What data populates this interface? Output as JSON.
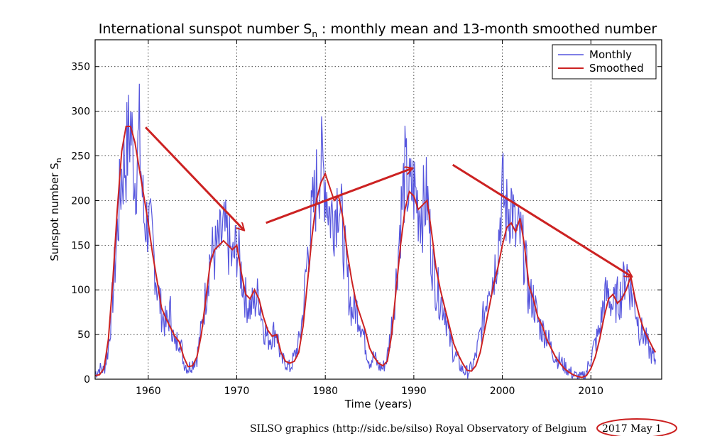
{
  "chart_data": {
    "type": "line",
    "title_main": "International sunspot number S",
    "title_sub": "n",
    "title_rest": " : monthly mean and 13-month smoothed number",
    "xlabel": "Time (years)",
    "ylabel_main": "Sunspot number S",
    "ylabel_sub": "n",
    "xlim": [
      1954,
      2018
    ],
    "ylim": [
      0,
      380
    ],
    "xticks": [
      1960,
      1970,
      1980,
      1990,
      2000,
      2010
    ],
    "yticks": [
      0,
      50,
      100,
      150,
      200,
      250,
      300,
      350
    ],
    "grid": true,
    "legend_position": "top-right",
    "series": [
      {
        "name": "Monthly",
        "color": "#5555dd",
        "style": "noisy-monthly",
        "x": [
          1954.0,
          1954.5,
          1955.0,
          1955.5,
          1956.0,
          1956.5,
          1957.0,
          1957.5,
          1958.0,
          1958.5,
          1959.0,
          1959.5,
          1960.0,
          1960.5,
          1961.0,
          1961.5,
          1962.0,
          1962.5,
          1963.0,
          1963.5,
          1964.0,
          1964.5,
          1965.0,
          1965.5,
          1966.0,
          1966.5,
          1967.0,
          1967.5,
          1968.0,
          1968.5,
          1969.0,
          1969.5,
          1970.0,
          1970.5,
          1971.0,
          1971.5,
          1972.0,
          1972.5,
          1973.0,
          1973.5,
          1974.0,
          1974.5,
          1975.0,
          1975.5,
          1976.0,
          1976.5,
          1977.0,
          1977.5,
          1978.0,
          1978.5,
          1979.0,
          1979.5,
          1980.0,
          1980.5,
          1981.0,
          1981.5,
          1982.0,
          1982.5,
          1983.0,
          1983.5,
          1984.0,
          1984.5,
          1985.0,
          1985.5,
          1986.0,
          1986.5,
          1987.0,
          1987.5,
          1988.0,
          1988.5,
          1989.0,
          1989.5,
          1990.0,
          1990.5,
          1991.0,
          1991.5,
          1992.0,
          1992.5,
          1993.0,
          1993.5,
          1994.0,
          1994.5,
          1995.0,
          1995.5,
          1996.0,
          1996.5,
          1997.0,
          1997.5,
          1998.0,
          1998.5,
          1999.0,
          1999.5,
          2000.0,
          2000.5,
          2001.0,
          2001.5,
          2002.0,
          2002.5,
          2003.0,
          2003.5,
          2004.0,
          2004.5,
          2005.0,
          2005.5,
          2006.0,
          2006.5,
          2007.0,
          2007.5,
          2008.0,
          2008.5,
          2009.0,
          2009.5,
          2010.0,
          2010.5,
          2011.0,
          2011.5,
          2012.0,
          2012.5,
          2013.0,
          2013.5,
          2014.0,
          2014.5,
          2015.0,
          2015.5,
          2016.0,
          2016.5,
          2017.0,
          2017.3
        ],
        "values": [
          6,
          12,
          10,
          35,
          95,
          165,
          230,
          250,
          285,
          225,
          270,
          180,
          175,
          150,
          105,
          75,
          60,
          75,
          35,
          50,
          20,
          12,
          18,
          25,
          55,
          95,
          140,
          140,
          150,
          165,
          155,
          130,
          150,
          120,
          90,
          80,
          85,
          95,
          60,
          45,
          50,
          55,
          20,
          20,
          12,
          25,
          40,
          75,
          140,
          180,
          215,
          240,
          225,
          185,
          185,
          210,
          160,
          110,
          75,
          80,
          65,
          40,
          20,
          25,
          15,
          12,
          25,
          60,
          110,
          180,
          230,
          205,
          215,
          195,
          190,
          205,
          140,
          105,
          90,
          80,
          45,
          30,
          20,
          10,
          8,
          12,
          25,
          50,
          75,
          115,
          115,
          150,
          210,
          185,
          200,
          160,
          160,
          140,
          90,
          90,
          65,
          55,
          50,
          35,
          25,
          20,
          15,
          10,
          5,
          3,
          2,
          8,
          25,
          40,
          55,
          90,
          95,
          80,
          90,
          95,
          125,
          100,
          85,
          55,
          50,
          35,
          25,
          22
        ]
      },
      {
        "name": "Smoothed",
        "color": "#cc2222",
        "style": "smooth",
        "x": [
          1954.0,
          1954.5,
          1955.0,
          1955.5,
          1956.0,
          1956.5,
          1957.0,
          1957.5,
          1958.0,
          1958.5,
          1959.0,
          1959.5,
          1960.0,
          1960.5,
          1961.0,
          1961.5,
          1962.0,
          1962.5,
          1963.0,
          1963.5,
          1964.0,
          1964.5,
          1965.0,
          1965.5,
          1966.0,
          1966.5,
          1967.0,
          1967.5,
          1968.0,
          1968.5,
          1969.0,
          1969.5,
          1970.0,
          1970.5,
          1971.0,
          1971.5,
          1972.0,
          1972.5,
          1973.0,
          1973.5,
          1974.0,
          1974.5,
          1975.0,
          1975.5,
          1976.0,
          1976.5,
          1977.0,
          1977.5,
          1978.0,
          1978.5,
          1979.0,
          1979.5,
          1980.0,
          1980.5,
          1981.0,
          1981.5,
          1982.0,
          1982.5,
          1983.0,
          1983.5,
          1984.0,
          1984.5,
          1985.0,
          1985.5,
          1986.0,
          1986.5,
          1987.0,
          1987.5,
          1988.0,
          1988.5,
          1989.0,
          1989.5,
          1990.0,
          1990.5,
          1991.0,
          1991.5,
          1992.0,
          1992.5,
          1993.0,
          1993.5,
          1994.0,
          1994.5,
          1995.0,
          1995.5,
          1996.0,
          1996.5,
          1997.0,
          1997.5,
          1998.0,
          1998.5,
          1999.0,
          1999.5,
          2000.0,
          2000.5,
          2001.0,
          2001.5,
          2002.0,
          2002.5,
          2003.0,
          2003.5,
          2004.0,
          2004.5,
          2005.0,
          2005.5,
          2006.0,
          2006.5,
          2007.0,
          2007.5,
          2008.0,
          2008.5,
          2009.0,
          2009.5,
          2010.0,
          2010.5,
          2011.0,
          2011.5,
          2012.0,
          2012.5,
          2013.0,
          2013.5,
          2014.0,
          2014.5,
          2015.0,
          2015.5,
          2016.0,
          2016.5,
          2017.0,
          2017.3
        ],
        "values": [
          4,
          5,
          12,
          45,
          110,
          190,
          255,
          283,
          283,
          265,
          235,
          205,
          175,
          140,
          110,
          80,
          68,
          58,
          48,
          42,
          25,
          14,
          15,
          25,
          50,
          90,
          130,
          145,
          150,
          155,
          150,
          145,
          150,
          120,
          95,
          90,
          100,
          90,
          70,
          55,
          48,
          50,
          30,
          20,
          18,
          20,
          30,
          60,
          110,
          160,
          200,
          220,
          230,
          215,
          200,
          205,
          180,
          140,
          110,
          85,
          70,
          55,
          35,
          25,
          18,
          15,
          20,
          50,
          100,
          150,
          190,
          210,
          205,
          190,
          195,
          200,
          165,
          125,
          100,
          80,
          60,
          40,
          28,
          18,
          10,
          9,
          15,
          30,
          55,
          80,
          105,
          125,
          150,
          170,
          175,
          165,
          180,
          150,
          105,
          90,
          70,
          60,
          45,
          35,
          25,
          18,
          12,
          8,
          5,
          3,
          2,
          4,
          12,
          25,
          45,
          70,
          90,
          95,
          85,
          90,
          100,
          115,
          90,
          70,
          55,
          45,
          35,
          30
        ]
      }
    ]
  },
  "annotations": {
    "arrows": [
      {
        "from": [
          1959.7,
          282
        ],
        "to": [
          1970.8,
          167
        ]
      },
      {
        "from": [
          1973.3,
          175
        ],
        "to": [
          1989.8,
          236
        ]
      },
      {
        "from": [
          1994.4,
          240
        ],
        "to": [
          2014.6,
          115
        ]
      }
    ],
    "arrow_color": "#cc2222"
  },
  "footer": {
    "credit": "SILSO graphics (http://sidc.be/silso)  Royal Observatory of Belgium",
    "date": "2017 May 1"
  }
}
